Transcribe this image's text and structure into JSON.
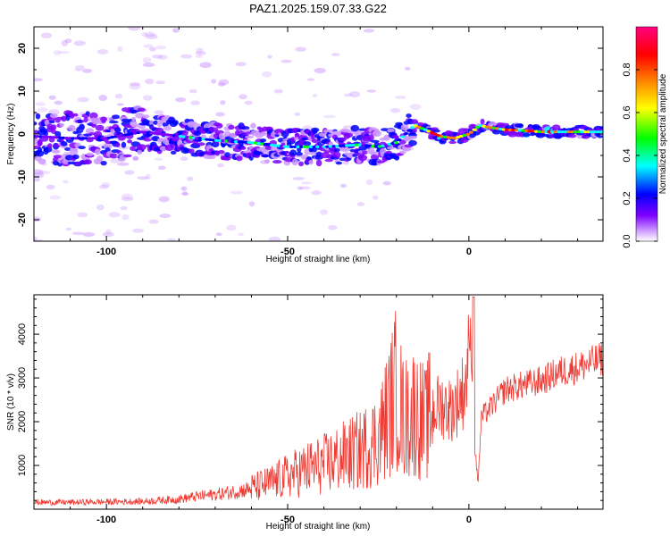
{
  "figure": {
    "title": "PAZ1.2025.159.07.33.G22"
  },
  "chart_data": [
    {
      "type": "heatmap",
      "title": "PAZ1.2025.159.07.33.G22",
      "xlabel": "Height of straight line (km)",
      "ylabel": "Frequency (Hz)",
      "xlim": [
        -120,
        37
      ],
      "ylim": [
        -25,
        25
      ],
      "xticks": [
        -100,
        -50,
        0
      ],
      "yticks": [
        -20,
        -10,
        0,
        10,
        20
      ],
      "colorbar": {
        "label": "Normalized spectral amplitude",
        "range": [
          0,
          1
        ],
        "ticks": [
          "0.0",
          "0.2",
          "0.4",
          "0.6",
          "0.8"
        ],
        "colors": [
          "#ffffff",
          "#cc99ff",
          "#7f00ff",
          "#0000ff",
          "#00ffff",
          "#00ff00",
          "#ffff00",
          "#ff8000",
          "#ff0000",
          "#ff0080"
        ]
      },
      "ridge": {
        "x": [
          -120,
          -110,
          -100,
          -90,
          -80,
          -70,
          -60,
          -50,
          -40,
          -30,
          -25,
          -20,
          -15,
          -12,
          -8,
          -4,
          0,
          3,
          6,
          10,
          15,
          20,
          25,
          30,
          37
        ],
        "y": [
          -0.5,
          -1,
          -1,
          0.5,
          -0.5,
          -1.5,
          -2,
          -3,
          -3,
          -2.5,
          -3,
          -2,
          2,
          1,
          -0.5,
          -1,
          0,
          2,
          1.5,
          1,
          0.8,
          0.5,
          0.5,
          0.5,
          0.5
        ]
      },
      "grid": false,
      "legend": "colorbar right"
    },
    {
      "type": "line",
      "xlabel": "Height of straight line (km)",
      "ylabel": "SNR (10 * v/v)",
      "xlim": [
        -120,
        37
      ],
      "ylim": [
        0,
        4900
      ],
      "xticks": [
        -100,
        -50,
        0
      ],
      "yticks": [
        1000,
        2000,
        3000,
        4000
      ],
      "color": "#ee3a33",
      "series": [
        {
          "x": [
            -120,
            -110,
            -100,
            -90,
            -80,
            -75,
            -70,
            -65,
            -60,
            -55,
            -50,
            -45,
            -40,
            -35,
            -30,
            -25,
            -22,
            -20,
            -18,
            -15,
            -12,
            -10,
            -7,
            -5,
            -3,
            -1,
            0.5,
            1.5,
            2.5,
            3.5,
            5,
            8,
            10,
            15,
            20,
            25,
            30,
            37
          ],
          "y": [
            150,
            150,
            160,
            170,
            220,
            280,
            320,
            380,
            450,
            550,
            700,
            850,
            950,
            1100,
            1250,
            1500,
            2100,
            2600,
            1900,
            2100,
            1800,
            2200,
            2300,
            2200,
            2400,
            2700,
            4000,
            1500,
            600,
            2100,
            2200,
            2500,
            2700,
            2800,
            2900,
            3100,
            3200,
            3400
          ]
        }
      ],
      "grid": false
    }
  ]
}
